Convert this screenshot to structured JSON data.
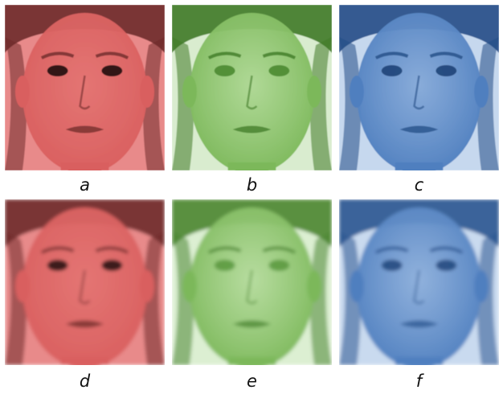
{
  "panels": [
    {
      "label": "a",
      "tint": "#d95f5f",
      "bg": "#e88a8a",
      "dark": "#6e2a2a",
      "skin": "#e3716f",
      "eye": "#1e0f0f",
      "blur": false
    },
    {
      "label": "b",
      "tint": "#7cb85a",
      "bg": "#d9eccf",
      "dark": "#3f7a26",
      "skin": "#a8d58c",
      "eye": "#4a8a30",
      "blur": false
    },
    {
      "label": "c",
      "tint": "#4f7fbf",
      "bg": "#c6d8ee",
      "dark": "#234d86",
      "skin": "#7ea4d6",
      "eye": "#1f4478",
      "blur": false
    },
    {
      "label": "d",
      "tint": "#d95f5f",
      "bg": "#e88a8a",
      "dark": "#6e2a2a",
      "skin": "#e3716f",
      "eye": "#2a1414",
      "blur": true
    },
    {
      "label": "e",
      "tint": "#7cb85a",
      "bg": "#dcefd2",
      "dark": "#4b8531",
      "skin": "#b0d996",
      "eye": "#5d9a40",
      "blur": true
    },
    {
      "label": "f",
      "tint": "#4f7fbf",
      "bg": "#c9daef",
      "dark": "#2a5590",
      "skin": "#86aad9",
      "eye": "#254a80",
      "blur": true
    }
  ]
}
